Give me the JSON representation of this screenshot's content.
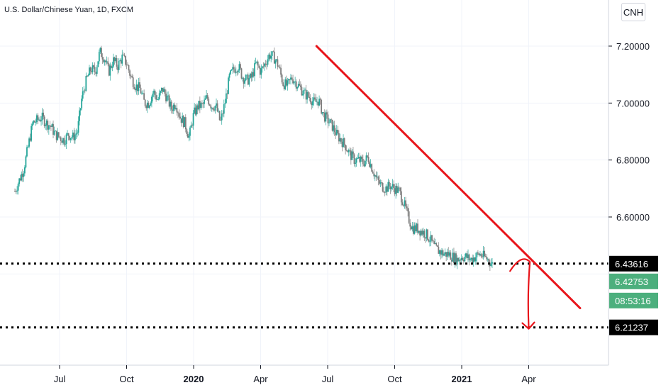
{
  "chart_data": {
    "type": "candlestick",
    "title": "U.S. Dollar/Chinese Yuan, 1D, FXCM",
    "currency": "CNH",
    "y_ticks": [
      "7.20000",
      "7.00000",
      "6.80000",
      "6.60000"
    ],
    "y_tick_values": [
      7.2,
      7.0,
      6.8,
      6.6
    ],
    "ylim": [
      6.04,
      7.42
    ],
    "x_ticks": [
      {
        "label": "Jul",
        "t": 0.0,
        "bold": false
      },
      {
        "label": "Oct",
        "t": 3.0,
        "bold": false
      },
      {
        "label": "2020",
        "t": 6.0,
        "bold": true
      },
      {
        "label": "Apr",
        "t": 9.0,
        "bold": false
      },
      {
        "label": "Jul",
        "t": 12.0,
        "bold": false
      },
      {
        "label": "Oct",
        "t": 15.0,
        "bold": false
      },
      {
        "label": "2021",
        "t": 18.0,
        "bold": true
      },
      {
        "label": "Apr",
        "t": 21.0,
        "bold": false
      }
    ],
    "price_path": [
      [
        -2.0,
        6.69
      ],
      [
        -1.8,
        6.73
      ],
      [
        -1.6,
        6.77
      ],
      [
        -1.4,
        6.85
      ],
      [
        -1.2,
        6.93
      ],
      [
        -1.0,
        6.94
      ],
      [
        -0.8,
        6.95
      ],
      [
        -0.6,
        6.93
      ],
      [
        -0.4,
        6.92
      ],
      [
        -0.2,
        6.89
      ],
      [
        0.0,
        6.88
      ],
      [
        0.2,
        6.87
      ],
      [
        0.4,
        6.89
      ],
      [
        0.6,
        6.88
      ],
      [
        0.8,
        6.9
      ],
      [
        1.0,
        7.02
      ],
      [
        1.2,
        7.08
      ],
      [
        1.4,
        7.12
      ],
      [
        1.6,
        7.11
      ],
      [
        1.8,
        7.18
      ],
      [
        2.0,
        7.16
      ],
      [
        2.2,
        7.11
      ],
      [
        2.4,
        7.15
      ],
      [
        2.6,
        7.13
      ],
      [
        2.8,
        7.16
      ],
      [
        3.0,
        7.14
      ],
      [
        3.2,
        7.09
      ],
      [
        3.4,
        7.06
      ],
      [
        3.6,
        7.05
      ],
      [
        3.8,
        7.0
      ],
      [
        4.0,
        7.0
      ],
      [
        4.2,
        7.04
      ],
      [
        4.4,
        7.01
      ],
      [
        4.6,
        7.05
      ],
      [
        4.8,
        7.02
      ],
      [
        5.0,
        6.98
      ],
      [
        5.2,
        7.0
      ],
      [
        5.4,
        6.95
      ],
      [
        5.6,
        6.93
      ],
      [
        5.8,
        6.88
      ],
      [
        6.0,
        6.96
      ],
      [
        6.2,
        6.99
      ],
      [
        6.4,
        6.99
      ],
      [
        6.6,
        7.02
      ],
      [
        6.8,
        6.99
      ],
      [
        7.0,
        6.99
      ],
      [
        7.2,
        6.93
      ],
      [
        7.4,
        7.0
      ],
      [
        7.6,
        7.09
      ],
      [
        7.8,
        7.12
      ],
      [
        8.0,
        7.13
      ],
      [
        8.2,
        7.09
      ],
      [
        8.4,
        7.08
      ],
      [
        8.6,
        7.09
      ],
      [
        8.8,
        7.14
      ],
      [
        9.0,
        7.11
      ],
      [
        9.2,
        7.14
      ],
      [
        9.4,
        7.17
      ],
      [
        9.6,
        7.16
      ],
      [
        9.8,
        7.13
      ],
      [
        10.0,
        7.07
      ],
      [
        10.2,
        7.06
      ],
      [
        10.4,
        7.09
      ],
      [
        10.6,
        7.07
      ],
      [
        10.8,
        7.05
      ],
      [
        11.0,
        7.03
      ],
      [
        11.2,
        7.02
      ],
      [
        11.4,
        7.0
      ],
      [
        11.6,
        7.01
      ],
      [
        11.8,
        6.96
      ],
      [
        12.0,
        6.94
      ],
      [
        12.2,
        6.92
      ],
      [
        12.4,
        6.89
      ],
      [
        12.6,
        6.87
      ],
      [
        12.8,
        6.85
      ],
      [
        13.0,
        6.82
      ],
      [
        13.2,
        6.8
      ],
      [
        13.4,
        6.8
      ],
      [
        13.6,
        6.79
      ],
      [
        13.8,
        6.81
      ],
      [
        14.0,
        6.77
      ],
      [
        14.2,
        6.73
      ],
      [
        14.4,
        6.71
      ],
      [
        14.6,
        6.7
      ],
      [
        14.8,
        6.71
      ],
      [
        15.0,
        6.7
      ],
      [
        15.2,
        6.69
      ],
      [
        15.4,
        6.65
      ],
      [
        15.6,
        6.6
      ],
      [
        15.8,
        6.56
      ],
      [
        16.0,
        6.56
      ],
      [
        16.2,
        6.55
      ],
      [
        16.4,
        6.54
      ],
      [
        16.6,
        6.52
      ],
      [
        16.8,
        6.49
      ],
      [
        17.0,
        6.48
      ],
      [
        17.2,
        6.47
      ],
      [
        17.4,
        6.47
      ],
      [
        17.6,
        6.46
      ],
      [
        17.8,
        6.45
      ],
      [
        18.0,
        6.46
      ],
      [
        18.2,
        6.46
      ],
      [
        18.4,
        6.45
      ],
      [
        18.6,
        6.46
      ],
      [
        18.8,
        6.47
      ],
      [
        19.0,
        6.46
      ],
      [
        19.2,
        6.45
      ],
      [
        19.4,
        6.43
      ]
    ],
    "trendline": {
      "start": [
        11.5,
        7.2
      ],
      "end": [
        23.3,
        6.28
      ],
      "color": "#e8151b"
    },
    "projection_arrow": {
      "from": [
        20.8,
        6.43
      ],
      "to": [
        21.0,
        6.21
      ],
      "color": "#e8151b"
    },
    "levels": [
      {
        "label": "6.43616",
        "value": 6.43616,
        "style": "dotted",
        "box_bg": "#000000",
        "box_fg": "#ffffff"
      },
      {
        "label": "6.21237",
        "value": 6.21237,
        "style": "dotted",
        "box_bg": "#000000",
        "box_fg": "#ffffff"
      }
    ],
    "current_price": {
      "label": "6.42753",
      "value": 6.42753,
      "box_bg": "#4caf7d",
      "box_fg": "#ffffff"
    },
    "countdown": {
      "label": "08:53:16",
      "box_bg": "#4caf7d",
      "box_fg": "#ffffff"
    },
    "grid": true,
    "candle_up_color": "#26a69a",
    "candle_down_color": "#7c7c7c"
  }
}
